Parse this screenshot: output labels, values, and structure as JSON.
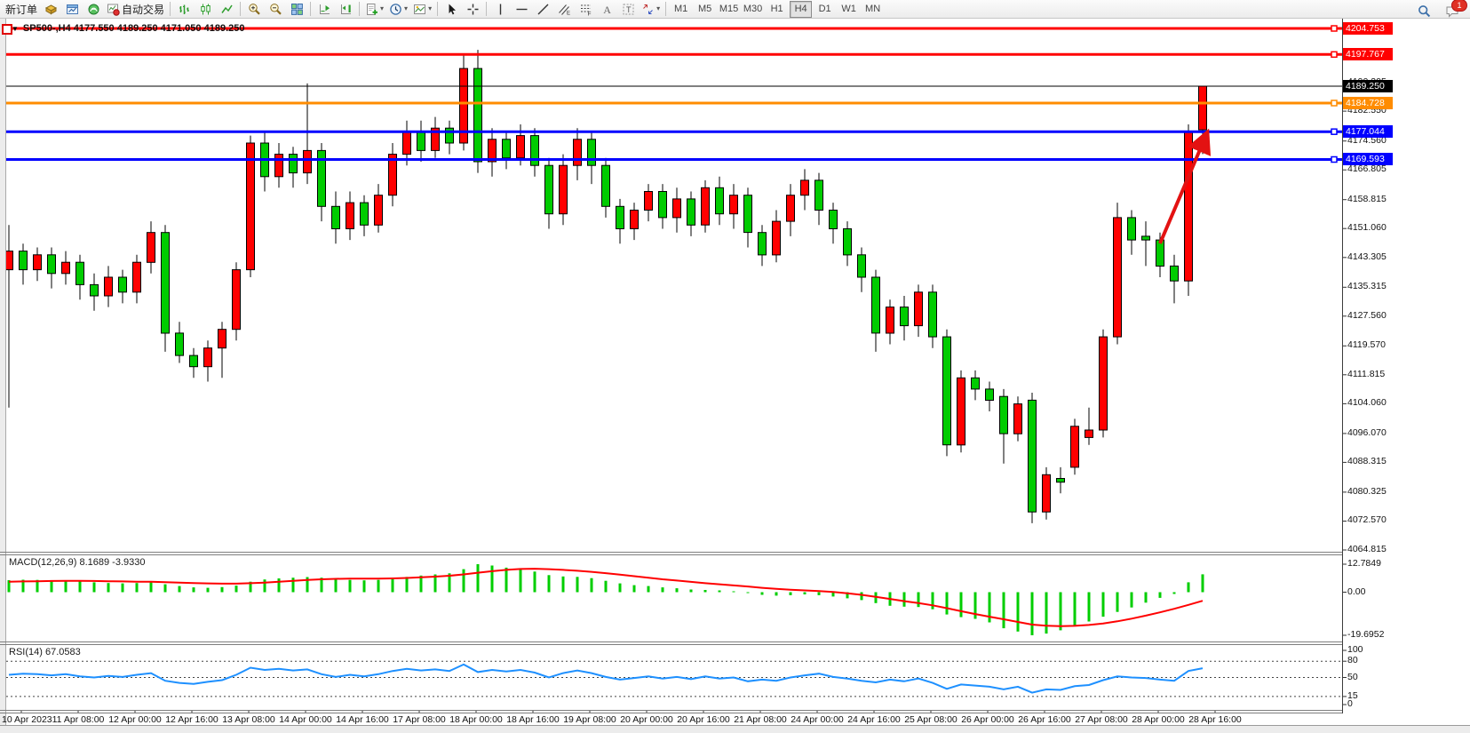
{
  "toolbar": {
    "new_order_label": "新订单",
    "auto_trading_label": "自动交易",
    "timeframes": [
      "M1",
      "M5",
      "M15",
      "M30",
      "H1",
      "H4",
      "D1",
      "W1",
      "MN"
    ],
    "active_timeframe": "H4",
    "notification_count": "1",
    "items": [
      {
        "type": "text",
        "name": "new-order-button",
        "label": "新订单"
      },
      {
        "type": "icon",
        "name": "market-watch-button",
        "icon": "market-watch-icon"
      },
      {
        "type": "icon",
        "name": "data-window-button",
        "icon": "data-window-icon"
      },
      {
        "type": "icon",
        "name": "navigator-button",
        "icon": "navigator-icon"
      },
      {
        "type": "icon-text",
        "name": "auto-trading-button",
        "icon": "auto-trading-icon",
        "label": "自动交易"
      },
      {
        "type": "sep"
      },
      {
        "type": "icon",
        "name": "bar-chart-button",
        "icon": "bar-chart-icon"
      },
      {
        "type": "icon",
        "name": "candlestick-chart-button",
        "icon": "candlestick-chart-icon"
      },
      {
        "type": "icon",
        "name": "line-chart-button",
        "icon": "line-chart-icon"
      },
      {
        "type": "sep"
      },
      {
        "type": "icon",
        "name": "zoom-in-button",
        "icon": "zoom-in-icon"
      },
      {
        "type": "icon",
        "name": "zoom-out-button",
        "icon": "zoom-out-icon"
      },
      {
        "type": "icon",
        "name": "tile-windows-button",
        "icon": "tile-windows-icon"
      },
      {
        "type": "sep"
      },
      {
        "type": "icon",
        "name": "chart-shift-button",
        "icon": "chart-shift-icon"
      },
      {
        "type": "icon",
        "name": "auto-scroll-button",
        "icon": "auto-scroll-icon"
      },
      {
        "type": "sep"
      },
      {
        "type": "icon-dd",
        "name": "new-chart-button",
        "icon": "new-chart-icon"
      },
      {
        "type": "icon-dd",
        "name": "period-button",
        "icon": "clock-icon"
      },
      {
        "type": "icon-dd",
        "name": "template-button",
        "icon": "template-icon"
      },
      {
        "type": "sep"
      },
      {
        "type": "icon",
        "name": "cursor-button",
        "icon": "cursor-icon"
      },
      {
        "type": "icon",
        "name": "crosshair-button",
        "icon": "crosshair-icon"
      },
      {
        "type": "sep"
      },
      {
        "type": "icon",
        "name": "vertical-line-button",
        "icon": "vertical-line-icon"
      },
      {
        "type": "icon",
        "name": "horizontal-line-button",
        "icon": "horizontal-line-icon"
      },
      {
        "type": "icon",
        "name": "trendline-button",
        "icon": "trendline-icon"
      },
      {
        "type": "icon",
        "name": "equidistant-channel-button",
        "icon": "channel-icon"
      },
      {
        "type": "icon",
        "name": "fibonacci-button",
        "icon": "fibonacci-icon"
      },
      {
        "type": "icon",
        "name": "text-button",
        "icon": "text-icon"
      },
      {
        "type": "icon",
        "name": "text-label-button",
        "icon": "text-label-icon"
      },
      {
        "type": "icon-dd",
        "name": "arrows-button",
        "icon": "arrows-icon"
      },
      {
        "type": "sep"
      }
    ]
  },
  "chart": {
    "title": "SP500-,H4  4177.550 4189.250 4171.050 4189.250",
    "symbol": "SP500-",
    "period": "H4"
  },
  "colors": {
    "bull": "#ff0000",
    "bear": "#00cc00",
    "macd_hist": "#00ce00",
    "macd_signal": "#ff0000",
    "rsi_line": "#1e90ff",
    "arrow": "#e31212"
  },
  "chart_data": {
    "type": "candlestick",
    "symbol": "SP500-",
    "period": "H4",
    "price_axis": {
      "max": 4204.753,
      "min": 4064.815
    },
    "axis_labels": [
      "4190.305",
      "4182.550",
      "4174.560",
      "4166.805",
      "4158.815",
      "4151.060",
      "4143.305",
      "4135.315",
      "4127.560",
      "4119.570",
      "4111.815",
      "4104.060",
      "4096.070",
      "4088.315",
      "4080.325",
      "4072.570",
      "4064.815"
    ],
    "time_labels": [
      "10 Apr 2023",
      "11 Apr 08:00",
      "12 Apr 00:00",
      "12 Apr 16:00",
      "13 Apr 08:00",
      "14 Apr 00:00",
      "14 Apr 16:00",
      "17 Apr 08:00",
      "18 Apr 00:00",
      "18 Apr 16:00",
      "19 Apr 08:00",
      "20 Apr 00:00",
      "20 Apr 16:00",
      "21 Apr 08:00",
      "24 Apr 00:00",
      "24 Apr 16:00",
      "25 Apr 08:00",
      "26 Apr 00:00",
      "26 Apr 16:00",
      "27 Apr 08:00",
      "28 Apr 00:00",
      "28 Apr 16:00"
    ],
    "hlines": [
      {
        "price": 4204.753,
        "label": "4204.753",
        "color": "#ff0000"
      },
      {
        "price": 4197.767,
        "label": "4197.767",
        "color": "#ff0000"
      },
      {
        "price": 4184.728,
        "label": "4184.728",
        "color": "#ff8c00"
      },
      {
        "price": 4177.044,
        "label": "4177.044",
        "color": "#0000ff"
      },
      {
        "price": 4169.593,
        "label": "4169.593",
        "color": "#0000ff"
      }
    ],
    "current_price": {
      "price": 4189.25,
      "label": "4189.250",
      "color": "#000000"
    },
    "candles": [
      [
        4140,
        4152,
        4103,
        4145
      ],
      [
        4145,
        4147,
        4136,
        4140
      ],
      [
        4140,
        4146,
        4137,
        4144
      ],
      [
        4144,
        4146,
        4135,
        4139
      ],
      [
        4139,
        4145,
        4136,
        4142
      ],
      [
        4142,
        4144,
        4132,
        4136
      ],
      [
        4136,
        4139,
        4129,
        4133
      ],
      [
        4133,
        4141,
        4130,
        4138
      ],
      [
        4138,
        4140,
        4131,
        4134
      ],
      [
        4134,
        4144,
        4131,
        4142
      ],
      [
        4142,
        4153,
        4139,
        4150
      ],
      [
        4150,
        4152,
        4118,
        4123
      ],
      [
        4123,
        4126,
        4115,
        4117
      ],
      [
        4117,
        4119,
        4111,
        4114
      ],
      [
        4114,
        4121,
        4110,
        4119
      ],
      [
        4119,
        4126,
        4111,
        4124
      ],
      [
        4124,
        4142,
        4121,
        4140
      ],
      [
        4140,
        4176,
        4138,
        4174
      ],
      [
        4174,
        4177,
        4161,
        4165
      ],
      [
        4165,
        4174,
        4162,
        4171
      ],
      [
        4171,
        4173,
        4162,
        4166
      ],
      [
        4166,
        4190,
        4163,
        4172
      ],
      [
        4172,
        4174,
        4153,
        4157
      ],
      [
        4157,
        4161,
        4147,
        4151
      ],
      [
        4151,
        4161,
        4148,
        4158
      ],
      [
        4158,
        4160,
        4149,
        4152
      ],
      [
        4152,
        4163,
        4150,
        4160
      ],
      [
        4160,
        4174,
        4157,
        4171
      ],
      [
        4171,
        4180,
        4168,
        4177
      ],
      [
        4177,
        4180,
        4169,
        4172
      ],
      [
        4172,
        4181,
        4170,
        4178
      ],
      [
        4178,
        4180,
        4171,
        4174
      ],
      [
        4174,
        4198,
        4172,
        4194
      ],
      [
        4194,
        4199,
        4166,
        4169
      ],
      [
        4169,
        4178,
        4165,
        4175
      ],
      [
        4175,
        4177,
        4167,
        4170
      ],
      [
        4170,
        4179,
        4168,
        4176
      ],
      [
        4176,
        4178,
        4165,
        4168
      ],
      [
        4168,
        4170,
        4151,
        4155
      ],
      [
        4155,
        4171,
        4152,
        4168
      ],
      [
        4168,
        4178,
        4164,
        4175
      ],
      [
        4175,
        4177,
        4163,
        4168
      ],
      [
        4168,
        4170,
        4154,
        4157
      ],
      [
        4157,
        4159,
        4147,
        4151
      ],
      [
        4151,
        4158,
        4148,
        4156
      ],
      [
        4156,
        4163,
        4153,
        4161
      ],
      [
        4161,
        4163,
        4151,
        4154
      ],
      [
        4154,
        4162,
        4150,
        4159
      ],
      [
        4159,
        4161,
        4149,
        4152
      ],
      [
        4152,
        4164,
        4150,
        4162
      ],
      [
        4162,
        4165,
        4152,
        4155
      ],
      [
        4155,
        4163,
        4151,
        4160
      ],
      [
        4160,
        4162,
        4146,
        4150
      ],
      [
        4150,
        4152,
        4141,
        4144
      ],
      [
        4144,
        4156,
        4142,
        4153
      ],
      [
        4153,
        4163,
        4149,
        4160
      ],
      [
        4160,
        4167,
        4156,
        4164
      ],
      [
        4164,
        4166,
        4152,
        4156
      ],
      [
        4156,
        4158,
        4147,
        4151
      ],
      [
        4151,
        4153,
        4141,
        4144
      ],
      [
        4144,
        4146,
        4134,
        4138
      ],
      [
        4138,
        4140,
        4118,
        4123
      ],
      [
        4123,
        4132,
        4120,
        4130
      ],
      [
        4130,
        4133,
        4121,
        4125
      ],
      [
        4125,
        4136,
        4122,
        4134
      ],
      [
        4134,
        4136,
        4119,
        4122
      ],
      [
        4122,
        4124,
        4090,
        4093
      ],
      [
        4093,
        4113,
        4091,
        4111
      ],
      [
        4111,
        4113,
        4105,
        4108
      ],
      [
        4108,
        4110,
        4102,
        4105
      ],
      [
        4106,
        4108,
        4088,
        4096
      ],
      [
        4096,
        4106,
        4094,
        4104
      ],
      [
        4105,
        4107,
        4072,
        4075
      ],
      [
        4075,
        4087,
        4073,
        4085
      ],
      [
        4084,
        4087,
        4080,
        4083
      ],
      [
        4087,
        4100,
        4085,
        4098
      ],
      [
        4095,
        4103,
        4093,
        4097
      ],
      [
        4097,
        4124,
        4095,
        4122
      ],
      [
        4122,
        4158,
        4120,
        4154
      ],
      [
        4154,
        4156,
        4144,
        4148
      ],
      [
        4149,
        4153,
        4141,
        4148
      ],
      [
        4148,
        4150,
        4138,
        4141
      ],
      [
        4141,
        4144,
        4131,
        4137
      ],
      [
        4137,
        4179,
        4133,
        4177
      ],
      [
        4177.55,
        4189.25,
        4171.05,
        4189.25
      ]
    ],
    "macd": {
      "label": "MACD(12,26,9) 8.1689 -3.9330",
      "scale": [
        "12.7849",
        "0.00",
        "-19.6952"
      ],
      "histogram": [
        5.5,
        5.7,
        5.6,
        5.4,
        5.2,
        4.9,
        4.5,
        4.2,
        4.0,
        4.2,
        4.5,
        3.6,
        2.8,
        2.2,
        2.0,
        2.3,
        3.0,
        4.8,
        5.8,
        6.3,
        6.6,
        6.9,
        6.6,
        6.0,
        5.6,
        5.4,
        5.6,
        6.2,
        7.0,
        7.6,
        8.1,
        8.6,
        10.5,
        12.78,
        12.2,
        11.2,
        10.4,
        9.4,
        7.8,
        7.2,
        7.0,
        6.4,
        5.2,
        4.0,
        3.2,
        2.8,
        2.2,
        1.8,
        1.2,
        1.0,
        0.8,
        0.4,
        -0.4,
        -1.2,
        -1.6,
        -1.4,
        -1.0,
        -1.4,
        -2.0,
        -2.8,
        -3.6,
        -5.0,
        -6.2,
        -6.6,
        -6.8,
        -7.8,
        -10.2,
        -11.4,
        -12.2,
        -13.8,
        -16.5,
        -18.0,
        -19.7,
        -18.9,
        -17.4,
        -15.6,
        -13.4,
        -11.2,
        -9.0,
        -7.0,
        -4.8,
        -2.6,
        -0.8,
        4.5,
        8.17
      ],
      "signal": [
        4.8,
        4.9,
        5.0,
        5.1,
        5.15,
        5.15,
        5.1,
        5.0,
        4.9,
        4.8,
        4.75,
        4.6,
        4.4,
        4.2,
        4.0,
        3.9,
        3.9,
        4.1,
        4.4,
        4.8,
        5.2,
        5.6,
        5.9,
        6.1,
        6.2,
        6.2,
        6.2,
        6.3,
        6.5,
        6.8,
        7.1,
        7.5,
        8.1,
        8.9,
        9.6,
        10.2,
        10.6,
        10.7,
        10.5,
        10.2,
        9.8,
        9.3,
        8.7,
        8.0,
        7.3,
        6.6,
        5.9,
        5.3,
        4.7,
        4.1,
        3.6,
        3.1,
        2.6,
        2.0,
        1.5,
        1.1,
        0.8,
        0.5,
        0.1,
        -0.5,
        -1.2,
        -2.1,
        -3.1,
        -4.1,
        -5.0,
        -6.0,
        -7.3,
        -8.7,
        -10.0,
        -11.2,
        -12.4,
        -13.6,
        -14.8,
        -15.3,
        -15.5,
        -15.4,
        -15.0,
        -14.3,
        -13.3,
        -12.1,
        -10.7,
        -9.2,
        -7.6,
        -5.8,
        -3.93
      ]
    },
    "rsi": {
      "label": "RSI(14) 67.0583",
      "scale": [
        "100",
        "80",
        "50",
        "15",
        "0"
      ],
      "levels": [
        80,
        50,
        15
      ],
      "line": [
        55,
        57,
        56,
        54,
        56,
        52,
        50,
        53,
        51,
        55,
        58,
        44,
        40,
        38,
        42,
        45,
        55,
        68,
        64,
        66,
        63,
        65,
        56,
        51,
        55,
        52,
        56,
        62,
        66,
        63,
        65,
        62,
        74,
        60,
        64,
        61,
        64,
        59,
        50,
        58,
        63,
        58,
        51,
        46,
        49,
        52,
        48,
        51,
        47,
        52,
        48,
        50,
        43,
        46,
        44,
        50,
        54,
        57,
        51,
        48,
        44,
        41,
        46,
        43,
        48,
        40,
        29,
        37,
        35,
        33,
        28,
        33,
        22,
        28,
        27,
        34,
        36,
        45,
        52,
        50,
        49,
        46,
        44,
        62,
        67.06
      ]
    },
    "annotation_arrow": {
      "from": [
        1306,
        274
      ],
      "to": [
        1358,
        152
      ],
      "color": "#e31212"
    }
  }
}
